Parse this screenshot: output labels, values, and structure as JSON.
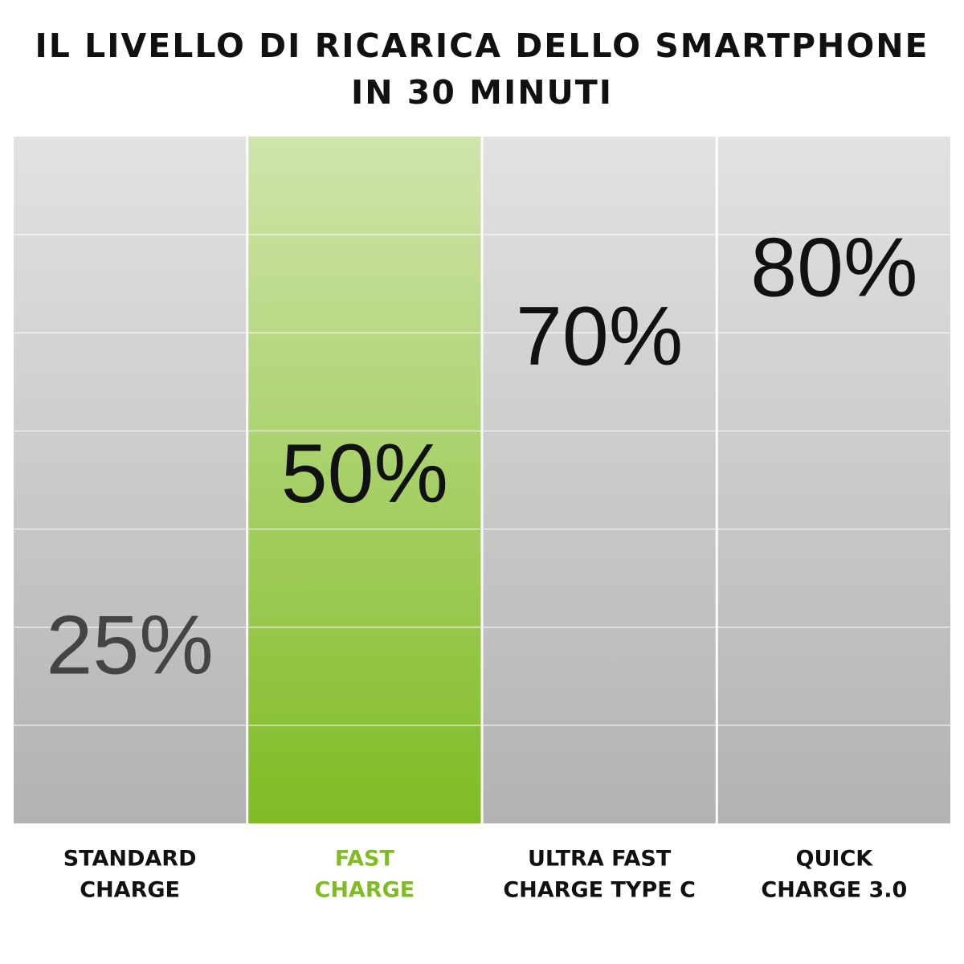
{
  "chart_data": {
    "type": "bar",
    "title": [
      "IL LIVELLO DI RICARICA DELLO SMARTPHONE",
      "IN 30 MINUTI"
    ],
    "categories": [
      [
        "STANDARD",
        "CHARGE"
      ],
      [
        "FAST",
        "CHARGE"
      ],
      [
        "ULTRA FAST",
        "CHARGE TYPE C"
      ],
      [
        "QUICK",
        "CHARGE 3.0"
      ]
    ],
    "values": [
      25,
      50,
      70,
      80
    ],
    "value_labels": [
      "25%",
      "50%",
      "70%",
      "80%"
    ],
    "colors": [
      "#b2b2b2",
      "#80bb24",
      "#b2b2b2",
      "#b2b2b2"
    ],
    "label_colors": [
      "#111111",
      "#80bb24",
      "#111111",
      "#111111"
    ],
    "value_label_colors": [
      "#444444",
      "#111111",
      "#111111",
      "#111111"
    ],
    "ylim": [
      0,
      100
    ]
  }
}
